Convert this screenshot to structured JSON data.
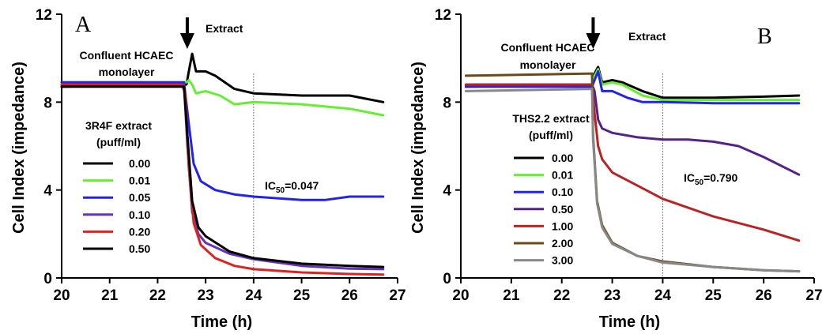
{
  "chart_data": [
    {
      "type": "line",
      "panel_label": "A",
      "xlabel": "Time (h)",
      "ylabel": "Cell Index (impedance)",
      "xlim": [
        20,
        27
      ],
      "ylim": [
        0,
        12
      ],
      "xticks": [
        "20",
        "21",
        "22",
        "23",
        "24",
        "25",
        "26",
        "27"
      ],
      "yticks": [
        "0",
        "4",
        "8",
        "12"
      ],
      "grid": false,
      "arrow_label": "Extract",
      "arrow_x": 22.7,
      "monolayer_label_line1": "Confluent HCAEC",
      "monolayer_label_line2": "monolayer",
      "legend_title_line1": "3R4F extract",
      "legend_title_line2": "(puff/ml)",
      "legend_position": "left",
      "vline_x": 24,
      "ic50_prefix": "IC",
      "ic50_sub": "50",
      "ic50_value": "=0.047",
      "series": [
        {
          "name": "0.00",
          "color": "#000000",
          "points": [
            [
              20,
              8.7
            ],
            [
              22.6,
              8.8
            ],
            [
              22.65,
              9.4
            ],
            [
              22.72,
              10.2
            ],
            [
              22.8,
              9.4
            ],
            [
              23.0,
              9.4
            ],
            [
              23.2,
              9.2
            ],
            [
              23.6,
              8.6
            ],
            [
              24,
              8.4
            ],
            [
              25,
              8.3
            ],
            [
              26,
              8.3
            ],
            [
              26.7,
              8.0
            ]
          ]
        },
        {
          "name": "0.01",
          "color": "#66ee33",
          "points": [
            [
              20,
              8.9
            ],
            [
              22.6,
              8.9
            ],
            [
              22.65,
              9.0
            ],
            [
              22.72,
              8.8
            ],
            [
              22.8,
              8.4
            ],
            [
              23.0,
              8.5
            ],
            [
              23.3,
              8.3
            ],
            [
              23.6,
              7.9
            ],
            [
              24,
              8.0
            ],
            [
              25,
              7.9
            ],
            [
              26,
              7.7
            ],
            [
              26.7,
              7.4
            ]
          ]
        },
        {
          "name": "0.05",
          "color": "#2222ee",
          "points": [
            [
              20,
              8.9
            ],
            [
              22.55,
              8.9
            ],
            [
              22.65,
              7.0
            ],
            [
              22.75,
              5.2
            ],
            [
              22.9,
              4.4
            ],
            [
              23.2,
              4.0
            ],
            [
              23.6,
              3.8
            ],
            [
              24,
              3.7
            ],
            [
              25,
              3.55
            ],
            [
              25.5,
              3.55
            ],
            [
              26,
              3.7
            ],
            [
              26.7,
              3.7
            ]
          ]
        },
        {
          "name": "0.10",
          "color": "#6633bb",
          "points": [
            [
              20,
              8.8
            ],
            [
              22.55,
              8.8
            ],
            [
              22.62,
              6.0
            ],
            [
              22.72,
              3.0
            ],
            [
              22.85,
              2.0
            ],
            [
              23,
              1.6
            ],
            [
              23.5,
              1.1
            ],
            [
              24,
              0.85
            ],
            [
              25,
              0.55
            ],
            [
              26,
              0.42
            ],
            [
              26.7,
              0.4
            ]
          ]
        },
        {
          "name": "0.20",
          "color": "#dd2222",
          "points": [
            [
              20,
              8.8
            ],
            [
              22.5,
              8.8
            ],
            [
              22.58,
              8.4
            ],
            [
              22.65,
              5.0
            ],
            [
              22.75,
              2.5
            ],
            [
              22.9,
              1.5
            ],
            [
              23.2,
              0.9
            ],
            [
              23.6,
              0.55
            ],
            [
              24,
              0.4
            ],
            [
              25,
              0.25
            ],
            [
              26,
              0.18
            ],
            [
              26.7,
              0.15
            ]
          ]
        },
        {
          "name": "0.50",
          "color": "#000000",
          "points": [
            [
              20,
              8.7
            ],
            [
              22.55,
              8.7
            ],
            [
              22.62,
              6.5
            ],
            [
              22.72,
              3.5
            ],
            [
              22.85,
              2.3
            ],
            [
              23,
              1.9
            ],
            [
              23.5,
              1.2
            ],
            [
              24,
              0.9
            ],
            [
              25,
              0.65
            ],
            [
              26,
              0.55
            ],
            [
              26.7,
              0.5
            ]
          ]
        }
      ]
    },
    {
      "type": "line",
      "panel_label": "B",
      "xlabel": "Time (h)",
      "ylabel": "Cell Index (impedance)",
      "xlim": [
        20,
        27
      ],
      "ylim": [
        0,
        12
      ],
      "xticks": [
        "20",
        "21",
        "22",
        "23",
        "24",
        "25",
        "26",
        "27"
      ],
      "yticks": [
        "0",
        "4",
        "8",
        "12"
      ],
      "grid": false,
      "arrow_label": "Extract",
      "arrow_x": 22.7,
      "monolayer_label_line1": "Confluent HCAEC",
      "monolayer_label_line2": "monolayer",
      "legend_title_line1": "THS2.2 extract",
      "legend_title_line2": "(puff/ml)",
      "legend_position": "left",
      "vline_x": 24,
      "ic50_prefix": "IC",
      "ic50_sub": "50",
      "ic50_value": "=0.790",
      "series": [
        {
          "name": "0.00",
          "color": "#000000",
          "points": [
            [
              20.1,
              8.7
            ],
            [
              22.6,
              8.8
            ],
            [
              22.65,
              9.3
            ],
            [
              22.72,
              9.6
            ],
            [
              22.8,
              8.9
            ],
            [
              23.0,
              9.0
            ],
            [
              23.2,
              8.9
            ],
            [
              23.6,
              8.5
            ],
            [
              24,
              8.2
            ],
            [
              25,
              8.2
            ],
            [
              26,
              8.25
            ],
            [
              26.7,
              8.3
            ]
          ]
        },
        {
          "name": "0.01",
          "color": "#66ee33",
          "points": [
            [
              20.1,
              8.8
            ],
            [
              22.6,
              8.8
            ],
            [
              22.65,
              9.2
            ],
            [
              22.72,
              9.5
            ],
            [
              22.8,
              8.8
            ],
            [
              23.0,
              8.9
            ],
            [
              23.2,
              8.8
            ],
            [
              23.6,
              8.3
            ],
            [
              24,
              8.1
            ],
            [
              25,
              8.1
            ],
            [
              26,
              8.1
            ],
            [
              26.7,
              8.1
            ]
          ]
        },
        {
          "name": "0.10",
          "color": "#2222ee",
          "points": [
            [
              20.1,
              8.7
            ],
            [
              22.6,
              8.7
            ],
            [
              22.65,
              9.0
            ],
            [
              22.72,
              9.4
            ],
            [
              22.8,
              8.5
            ],
            [
              23.0,
              8.5
            ],
            [
              23.3,
              8.2
            ],
            [
              23.6,
              8.0
            ],
            [
              24,
              8.0
            ],
            [
              25,
              7.95
            ],
            [
              26,
              7.95
            ],
            [
              26.7,
              7.95
            ]
          ]
        },
        {
          "name": "0.50",
          "color": "#552288",
          "points": [
            [
              20.1,
              8.8
            ],
            [
              22.6,
              8.8
            ],
            [
              22.65,
              8.5
            ],
            [
              22.72,
              7.2
            ],
            [
              22.8,
              6.8
            ],
            [
              23,
              6.6
            ],
            [
              23.5,
              6.4
            ],
            [
              24,
              6.3
            ],
            [
              24.5,
              6.3
            ],
            [
              25,
              6.2
            ],
            [
              25.5,
              6.0
            ],
            [
              26,
              5.5
            ],
            [
              26.7,
              4.7
            ]
          ]
        },
        {
          "name": "1.00",
          "color": "#bb2222",
          "points": [
            [
              20.1,
              8.8
            ],
            [
              22.6,
              8.8
            ],
            [
              22.65,
              7.5
            ],
            [
              22.72,
              6.0
            ],
            [
              22.8,
              5.4
            ],
            [
              23,
              4.8
            ],
            [
              23.5,
              4.2
            ],
            [
              24,
              3.6
            ],
            [
              25,
              2.8
            ],
            [
              26,
              2.2
            ],
            [
              26.7,
              1.7
            ]
          ]
        },
        {
          "name": "2.00",
          "color": "#6b4a1a",
          "points": [
            [
              20.1,
              9.2
            ],
            [
              22.6,
              9.3
            ],
            [
              22.62,
              6.5
            ],
            [
              22.7,
              3.5
            ],
            [
              22.8,
              2.4
            ],
            [
              23,
              1.6
            ],
            [
              23.5,
              1.0
            ],
            [
              24,
              0.75
            ],
            [
              25,
              0.5
            ],
            [
              26,
              0.35
            ],
            [
              26.7,
              0.3
            ]
          ]
        },
        {
          "name": "3.00",
          "color": "#888888",
          "points": [
            [
              20.1,
              8.5
            ],
            [
              22.6,
              8.6
            ],
            [
              22.62,
              6.3
            ],
            [
              22.7,
              3.4
            ],
            [
              22.8,
              2.3
            ],
            [
              23,
              1.55
            ],
            [
              23.5,
              1.0
            ],
            [
              24,
              0.7
            ],
            [
              25,
              0.5
            ],
            [
              26,
              0.35
            ],
            [
              26.7,
              0.3
            ]
          ]
        }
      ]
    }
  ]
}
